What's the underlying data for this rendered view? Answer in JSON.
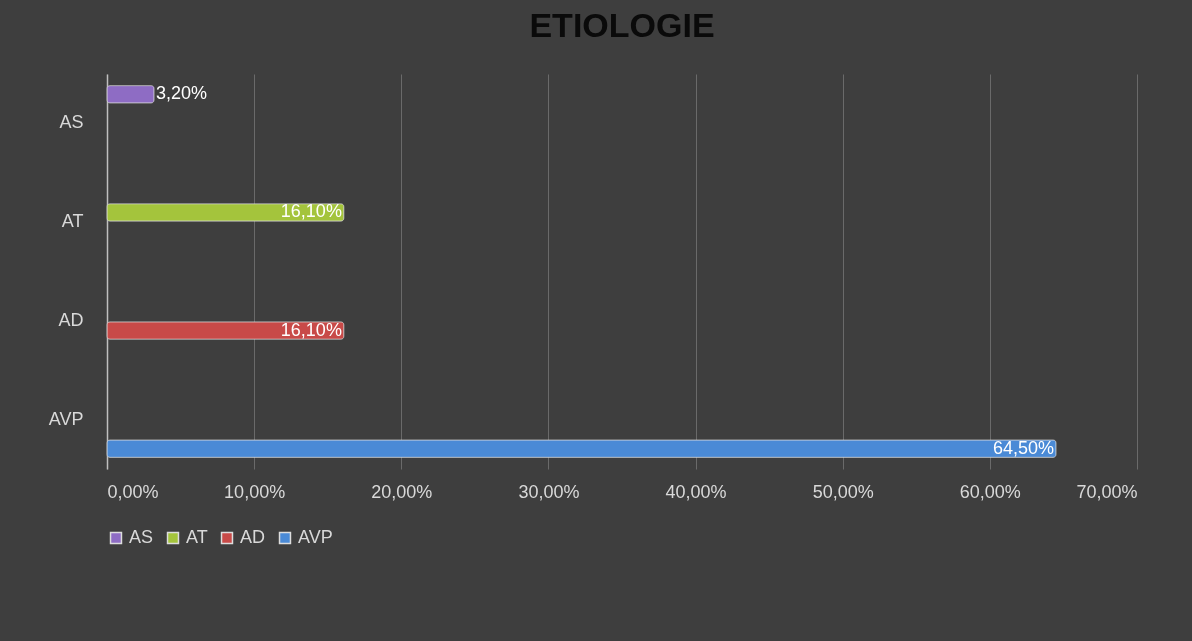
{
  "chart_data": {
    "type": "bar",
    "orientation": "horizontal",
    "title": "ETIOLOGIE",
    "categories": [
      "AS",
      "AT",
      "AD",
      "AVP"
    ],
    "series": [
      {
        "name": "AS",
        "color": "#8e6cc4",
        "values": [
          3.2,
          null,
          null,
          null
        ],
        "value_labels": [
          "3,20%",
          null,
          null,
          null
        ]
      },
      {
        "name": "AT",
        "color": "#a4c43c",
        "values": [
          null,
          16.1,
          null,
          null
        ],
        "value_labels": [
          null,
          "16,10%",
          null,
          null
        ]
      },
      {
        "name": "AD",
        "color": "#c84a48",
        "values": [
          null,
          null,
          16.1,
          null
        ],
        "value_labels": [
          null,
          null,
          "16,10%",
          null
        ]
      },
      {
        "name": "AVP",
        "color": "#4a8ad6",
        "values": [
          null,
          null,
          null,
          64.5
        ],
        "value_labels": [
          null,
          null,
          null,
          "64,50%"
        ]
      }
    ],
    "xlim": [
      0,
      70
    ],
    "xticks": [
      {
        "value": 0,
        "label": "0,00%"
      },
      {
        "value": 10,
        "label": "10,00%"
      },
      {
        "value": 20,
        "label": "20,00%"
      },
      {
        "value": 30,
        "label": "30,00%"
      },
      {
        "value": 40,
        "label": "40,00%"
      },
      {
        "value": 50,
        "label": "50,00%"
      },
      {
        "value": 60,
        "label": "60,00%"
      },
      {
        "value": 70,
        "label": "70,00%"
      }
    ],
    "grid": "x",
    "legend": "bottom"
  }
}
